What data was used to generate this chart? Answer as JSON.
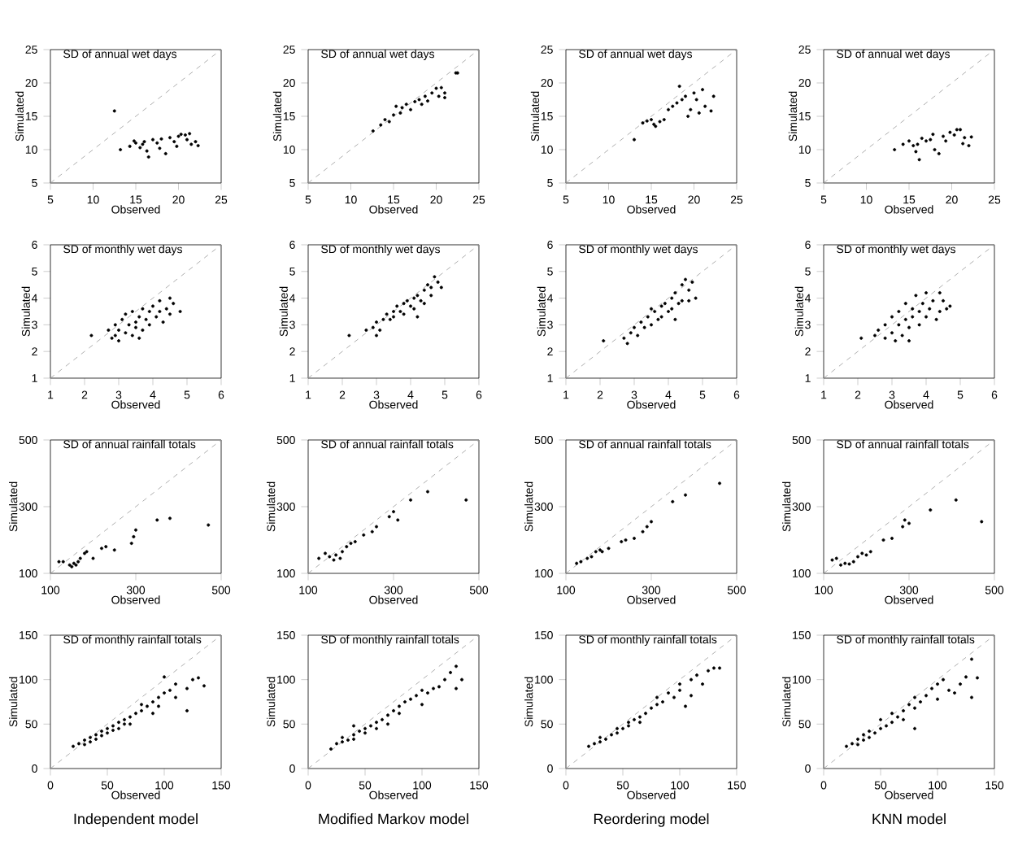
{
  "chart_data": [
    {
      "type": "scatter",
      "title": "SD of annual wet days",
      "xlabel": "Observed",
      "ylabel": "Simulated",
      "xlim": [
        5,
        25
      ],
      "ylim": [
        5,
        25
      ],
      "xticks": [
        5,
        10,
        15,
        20,
        25
      ],
      "yticks": [
        5,
        10,
        15,
        20,
        25
      ],
      "series": [
        {
          "type": "scatter",
          "color": "#000000",
          "marker": "circle",
          "x": [
            12.5,
            13.2,
            14.3,
            15,
            15.5,
            16,
            16.3,
            16.5,
            17,
            17.5,
            18,
            18.5,
            19,
            19.5,
            20,
            20.3,
            20.8,
            21,
            21.3,
            21.5,
            22,
            22.3,
            15.8,
            17.8,
            19.8,
            14.8
          ],
          "values": [
            15.8,
            10.0,
            10.5,
            11,
            10.3,
            11.2,
            9.8,
            8.9,
            11.5,
            11,
            11.6,
            9.4,
            11.8,
            11.2,
            12,
            12.3,
            12.2,
            11.5,
            12.4,
            10.8,
            11.2,
            10.6,
            10.8,
            10.2,
            10.5,
            11.3
          ]
        },
        {
          "type": "line",
          "color": "#999999",
          "line_style": "dashed",
          "marker": "none",
          "x": [
            5,
            25
          ],
          "values": [
            5,
            25
          ]
        }
      ]
    },
    {
      "type": "scatter",
      "title": "SD of annual wet days",
      "xlabel": "Observed",
      "ylabel": "Simulated",
      "xlim": [
        5,
        25
      ],
      "ylim": [
        5,
        25
      ],
      "xticks": [
        5,
        10,
        15,
        20,
        25
      ],
      "yticks": [
        5,
        10,
        15,
        20,
        25
      ],
      "series": [
        {
          "type": "scatter",
          "color": "#000000",
          "marker": "circle",
          "x": [
            12.6,
            13.5,
            14,
            14.5,
            15,
            15.3,
            15.8,
            16,
            16.5,
            17,
            17.5,
            18,
            18.3,
            18.7,
            19,
            19.5,
            20,
            20.3,
            20.6,
            21,
            21,
            22.3,
            22.5
          ],
          "values": [
            12.8,
            13.7,
            14.5,
            14.2,
            15.2,
            16.5,
            15.5,
            16.3,
            16.8,
            16,
            17.2,
            17.5,
            16.8,
            18,
            17.3,
            18.5,
            19.2,
            18,
            19.3,
            17.8,
            18.5,
            21.5,
            21.5
          ]
        },
        {
          "type": "line",
          "color": "#999999",
          "line_style": "dashed",
          "marker": "none",
          "x": [
            5,
            25
          ],
          "values": [
            5,
            25
          ]
        }
      ]
    },
    {
      "type": "scatter",
      "title": "SD of annual wet days",
      "xlabel": "Observed",
      "ylabel": "Simulated",
      "xlim": [
        5,
        25
      ],
      "ylim": [
        5,
        25
      ],
      "xticks": [
        5,
        10,
        15,
        20,
        25
      ],
      "yticks": [
        5,
        10,
        15,
        20,
        25
      ],
      "series": [
        {
          "type": "scatter",
          "color": "#000000",
          "marker": "circle",
          "x": [
            13,
            14,
            14.5,
            15,
            15.3,
            15.5,
            16,
            16.5,
            17,
            17.5,
            18,
            18.3,
            18.6,
            19,
            19.3,
            19.6,
            20,
            20.3,
            20.6,
            21,
            21.3,
            22,
            22.3
          ],
          "values": [
            11.5,
            14,
            14.3,
            14.5,
            13.8,
            13.5,
            14.2,
            14.5,
            16,
            16.5,
            17,
            19.5,
            17.5,
            18,
            15,
            16,
            18.5,
            17.5,
            15.5,
            19,
            16.5,
            15.8,
            18
          ]
        },
        {
          "type": "line",
          "color": "#999999",
          "line_style": "dashed",
          "marker": "none",
          "x": [
            5,
            25
          ],
          "values": [
            5,
            25
          ]
        }
      ]
    },
    {
      "type": "scatter",
      "title": "SD of annual wet days",
      "xlabel": "Observed",
      "ylabel": "Simulated",
      "xlim": [
        5,
        25
      ],
      "ylim": [
        5,
        25
      ],
      "xticks": [
        5,
        10,
        15,
        20,
        25
      ],
      "yticks": [
        5,
        10,
        15,
        20,
        25
      ],
      "series": [
        {
          "type": "scatter",
          "color": "#000000",
          "marker": "circle",
          "x": [
            13.3,
            14.3,
            15,
            15.5,
            15.8,
            16,
            16.2,
            16.5,
            17,
            17.5,
            18,
            18.5,
            19,
            19.3,
            19.8,
            20.3,
            20.6,
            21,
            21.3,
            21.5,
            22,
            22.3,
            17.8
          ],
          "values": [
            10,
            10.8,
            11.3,
            10.6,
            9.7,
            10.8,
            8.5,
            11.7,
            11.3,
            11.5,
            10,
            9.4,
            12,
            11.3,
            12.6,
            12.2,
            13,
            13,
            10.9,
            11.8,
            10.6,
            11.9,
            12.3
          ]
        },
        {
          "type": "line",
          "color": "#999999",
          "line_style": "dashed",
          "marker": "none",
          "x": [
            5,
            25
          ],
          "values": [
            5,
            25
          ]
        }
      ]
    },
    {
      "type": "scatter",
      "title": "SD of monthly wet days",
      "xlabel": "Observed",
      "ylabel": "Simulated",
      "xlim": [
        1,
        6
      ],
      "ylim": [
        1,
        6
      ],
      "xticks": [
        1,
        2,
        3,
        4,
        5,
        6
      ],
      "yticks": [
        1,
        2,
        3,
        4,
        5,
        6
      ],
      "series": [
        {
          "type": "scatter",
          "color": "#000000",
          "marker": "circle",
          "x": [
            2.2,
            2.7,
            2.8,
            2.9,
            3.0,
            3.0,
            3.1,
            3.2,
            3.2,
            3.3,
            3.4,
            3.4,
            3.5,
            3.5,
            3.6,
            3.7,
            3.7,
            3.8,
            3.9,
            3.9,
            4.0,
            4.1,
            4.2,
            4.2,
            4.3,
            4.4,
            4.5,
            4.5,
            4.6,
            4.8,
            2.9,
            3.6
          ],
          "values": [
            2.6,
            2.8,
            2.5,
            3.0,
            2.4,
            2.8,
            3.2,
            2.7,
            3.4,
            3.0,
            2.6,
            3.5,
            3.1,
            2.9,
            3.3,
            3.6,
            2.8,
            3.2,
            3.5,
            3.0,
            3.7,
            3.3,
            3.5,
            3.9,
            3.1,
            3.6,
            4.0,
            3.4,
            3.8,
            3.5,
            2.6,
            2.5
          ]
        },
        {
          "type": "line",
          "color": "#999999",
          "line_style": "dashed",
          "marker": "none",
          "x": [
            1,
            6
          ],
          "values": [
            1,
            6
          ]
        }
      ]
    },
    {
      "type": "scatter",
      "title": "SD of monthly wet days",
      "xlabel": "Observed",
      "ylabel": "Simulated",
      "xlim": [
        1,
        6
      ],
      "ylim": [
        1,
        6
      ],
      "xticks": [
        1,
        2,
        3,
        4,
        5,
        6
      ],
      "yticks": [
        1,
        2,
        3,
        4,
        5,
        6
      ],
      "series": [
        {
          "type": "scatter",
          "color": "#000000",
          "marker": "circle",
          "x": [
            2.2,
            2.7,
            2.9,
            3.0,
            3.1,
            3.2,
            3.3,
            3.4,
            3.5,
            3.5,
            3.6,
            3.7,
            3.8,
            3.8,
            3.9,
            4.0,
            4.1,
            4.1,
            4.2,
            4.3,
            4.4,
            4.4,
            4.5,
            4.6,
            4.6,
            4.7,
            4.8,
            4.9,
            3.0,
            4.2
          ],
          "values": [
            2.6,
            2.8,
            2.9,
            3.1,
            2.8,
            3.2,
            3.4,
            3.2,
            3.5,
            3.3,
            3.7,
            3.5,
            3.8,
            3.4,
            3.9,
            3.7,
            4.0,
            3.6,
            4.1,
            3.9,
            4.3,
            3.8,
            4.5,
            4.4,
            4.1,
            4.8,
            4.6,
            4.4,
            2.6,
            3.3
          ]
        },
        {
          "type": "line",
          "color": "#999999",
          "line_style": "dashed",
          "marker": "none",
          "x": [
            1,
            6
          ],
          "values": [
            1,
            6
          ]
        }
      ]
    },
    {
      "type": "scatter",
      "title": "SD of monthly wet days",
      "xlabel": "Observed",
      "ylabel": "Simulated",
      "xlim": [
        1,
        6
      ],
      "ylim": [
        1,
        6
      ],
      "xticks": [
        1,
        2,
        3,
        4,
        5,
        6
      ],
      "yticks": [
        1,
        2,
        3,
        4,
        5,
        6
      ],
      "series": [
        {
          "type": "scatter",
          "color": "#000000",
          "marker": "circle",
          "x": [
            2.1,
            2.7,
            2.9,
            3.0,
            3.1,
            3.2,
            3.3,
            3.4,
            3.5,
            3.6,
            3.7,
            3.8,
            3.8,
            3.9,
            4.0,
            4.1,
            4.1,
            4.2,
            4.3,
            4.4,
            4.4,
            4.5,
            4.6,
            4.6,
            4.7,
            4.8,
            3.5,
            2.8,
            4.2
          ],
          "values": [
            2.4,
            2.5,
            2.7,
            2.9,
            2.6,
            3.1,
            2.9,
            3.3,
            3.0,
            3.5,
            3.2,
            3.7,
            3.3,
            3.8,
            3.5,
            4.0,
            3.6,
            4.2,
            3.8,
            4.5,
            3.9,
            4.7,
            4.3,
            3.9,
            4.6,
            4.0,
            3.6,
            2.3,
            3.2
          ]
        },
        {
          "type": "line",
          "color": "#999999",
          "line_style": "dashed",
          "marker": "none",
          "x": [
            1,
            6
          ],
          "values": [
            1,
            6
          ]
        }
      ]
    },
    {
      "type": "scatter",
      "title": "SD of monthly wet days",
      "xlabel": "Observed",
      "ylabel": "Simulated",
      "xlim": [
        1,
        6
      ],
      "ylim": [
        1,
        6
      ],
      "xticks": [
        1,
        2,
        3,
        4,
        5,
        6
      ],
      "yticks": [
        1,
        2,
        3,
        4,
        5,
        6
      ],
      "series": [
        {
          "type": "scatter",
          "color": "#000000",
          "marker": "circle",
          "x": [
            2.1,
            2.5,
            2.6,
            2.8,
            2.8,
            3.0,
            3.0,
            3.1,
            3.2,
            3.2,
            3.3,
            3.4,
            3.4,
            3.5,
            3.6,
            3.6,
            3.7,
            3.8,
            3.8,
            3.9,
            4.0,
            4.0,
            4.1,
            4.2,
            4.3,
            4.4,
            4.4,
            4.5,
            4.6,
            4.7,
            3.5
          ],
          "values": [
            2.5,
            2.6,
            2.8,
            3.0,
            2.5,
            3.3,
            2.7,
            2.4,
            3.5,
            3.0,
            2.6,
            3.8,
            3.2,
            2.9,
            3.6,
            3.3,
            4.1,
            3.0,
            3.5,
            3.8,
            3.3,
            4.2,
            3.6,
            3.9,
            3.2,
            4.2,
            3.5,
            3.9,
            3.6,
            3.7,
            2.4
          ]
        },
        {
          "type": "line",
          "color": "#999999",
          "line_style": "dashed",
          "marker": "none",
          "x": [
            1,
            6
          ],
          "values": [
            1,
            6
          ]
        }
      ]
    },
    {
      "type": "scatter",
      "title": "SD of annual rainfall totals",
      "xlabel": "Observed",
      "ylabel": "Simulated",
      "xlim": [
        100,
        500
      ],
      "ylim": [
        100,
        500
      ],
      "xticks": [
        100,
        300,
        500
      ],
      "yticks": [
        100,
        300,
        500
      ],
      "series": [
        {
          "type": "scatter",
          "color": "#000000",
          "marker": "circle",
          "x": [
            120,
            130,
            145,
            150,
            155,
            160,
            165,
            170,
            180,
            185,
            200,
            220,
            230,
            250,
            290,
            295,
            300,
            350,
            380,
            470
          ],
          "values": [
            135,
            135,
            125,
            120,
            130,
            125,
            135,
            145,
            160,
            165,
            145,
            175,
            180,
            170,
            190,
            210,
            230,
            260,
            265,
            245
          ]
        },
        {
          "type": "line",
          "color": "#999999",
          "line_style": "dashed",
          "marker": "none",
          "x": [
            100,
            500
          ],
          "values": [
            100,
            500
          ]
        }
      ]
    },
    {
      "type": "scatter",
      "title": "SD of annual rainfall totals",
      "xlabel": "Observed",
      "ylabel": "Simulated",
      "xlim": [
        100,
        500
      ],
      "ylim": [
        100,
        500
      ],
      "xticks": [
        100,
        300,
        500
      ],
      "yticks": [
        100,
        300,
        500
      ],
      "series": [
        {
          "type": "scatter",
          "color": "#000000",
          "marker": "circle",
          "x": [
            125,
            140,
            150,
            160,
            165,
            175,
            180,
            190,
            200,
            210,
            230,
            250,
            260,
            290,
            300,
            310,
            340,
            380,
            470
          ],
          "values": [
            145,
            160,
            150,
            140,
            155,
            145,
            165,
            180,
            190,
            195,
            215,
            225,
            240,
            270,
            285,
            260,
            320,
            345,
            320
          ]
        },
        {
          "type": "line",
          "color": "#999999",
          "line_style": "dashed",
          "marker": "none",
          "x": [
            100,
            500
          ],
          "values": [
            100,
            500
          ]
        }
      ]
    },
    {
      "type": "scatter",
      "title": "SD of annual rainfall totals",
      "xlabel": "Observed",
      "ylabel": "Simulated",
      "xlim": [
        100,
        500
      ],
      "ylim": [
        100,
        500
      ],
      "xticks": [
        100,
        300,
        500
      ],
      "yticks": [
        100,
        300,
        500
      ],
      "series": [
        {
          "type": "scatter",
          "color": "#000000",
          "marker": "circle",
          "x": [
            125,
            135,
            150,
            160,
            170,
            180,
            185,
            200,
            230,
            240,
            260,
            280,
            290,
            300,
            350,
            380,
            460
          ],
          "values": [
            130,
            135,
            145,
            150,
            165,
            170,
            165,
            175,
            195,
            200,
            205,
            225,
            240,
            255,
            315,
            335,
            370
          ]
        },
        {
          "type": "line",
          "color": "#999999",
          "line_style": "dashed",
          "marker": "none",
          "x": [
            100,
            500
          ],
          "values": [
            100,
            500
          ]
        }
      ]
    },
    {
      "type": "scatter",
      "title": "SD of annual rainfall totals",
      "xlabel": "Observed",
      "ylabel": "Simulated",
      "xlim": [
        100,
        500
      ],
      "ylim": [
        100,
        500
      ],
      "xticks": [
        100,
        300,
        500
      ],
      "yticks": [
        100,
        300,
        500
      ],
      "series": [
        {
          "type": "scatter",
          "color": "#000000",
          "marker": "circle",
          "x": [
            120,
            130,
            140,
            150,
            160,
            170,
            180,
            190,
            200,
            210,
            240,
            260,
            285,
            290,
            300,
            350,
            410,
            470
          ],
          "values": [
            140,
            145,
            125,
            130,
            128,
            135,
            150,
            160,
            155,
            165,
            200,
            205,
            240,
            260,
            250,
            290,
            320,
            255
          ]
        },
        {
          "type": "line",
          "color": "#999999",
          "line_style": "dashed",
          "marker": "none",
          "x": [
            100,
            500
          ],
          "values": [
            100,
            500
          ]
        }
      ]
    },
    {
      "type": "scatter",
      "title": "SD of monthly rainfall totals",
      "xlabel": "Observed",
      "ylabel": "Simulated",
      "xlim": [
        0,
        150
      ],
      "ylim": [
        0,
        150
      ],
      "xticks": [
        0,
        50,
        100,
        150
      ],
      "yticks": [
        0,
        50,
        100,
        150
      ],
      "annotations": [
        "Independent model"
      ],
      "series": [
        {
          "type": "scatter",
          "color": "#000000",
          "marker": "circle",
          "x": [
            20,
            25,
            30,
            30,
            35,
            35,
            40,
            40,
            45,
            45,
            50,
            50,
            55,
            55,
            60,
            60,
            65,
            65,
            70,
            70,
            75,
            80,
            80,
            85,
            90,
            95,
            95,
            100,
            100,
            105,
            110,
            110,
            120,
            120,
            125,
            130,
            135,
            90
          ],
          "values": [
            25,
            28,
            27,
            32,
            30,
            35,
            33,
            38,
            37,
            42,
            40,
            45,
            43,
            48,
            45,
            52,
            50,
            55,
            58,
            50,
            62,
            65,
            72,
            70,
            75,
            80,
            70,
            85,
            103,
            88,
            95,
            80,
            90,
            65,
            100,
            102,
            93,
            62
          ]
        },
        {
          "type": "line",
          "color": "#999999",
          "line_style": "dashed",
          "marker": "none",
          "x": [
            0,
            150
          ],
          "values": [
            0,
            150
          ]
        }
      ]
    },
    {
      "type": "scatter",
      "title": "SD of monthly rainfall totals",
      "xlabel": "Observed",
      "ylabel": "Simulated",
      "xlim": [
        0,
        150
      ],
      "ylim": [
        0,
        150
      ],
      "xticks": [
        0,
        50,
        100,
        150
      ],
      "yticks": [
        0,
        50,
        100,
        150
      ],
      "annotations": [
        "Modified Markov model"
      ],
      "series": [
        {
          "type": "scatter",
          "color": "#000000",
          "marker": "circle",
          "x": [
            20,
            25,
            30,
            30,
            35,
            40,
            40,
            45,
            50,
            50,
            55,
            60,
            60,
            65,
            70,
            70,
            75,
            80,
            80,
            85,
            90,
            95,
            100,
            100,
            105,
            110,
            115,
            120,
            125,
            130,
            135,
            130,
            40
          ],
          "values": [
            22,
            28,
            30,
            35,
            32,
            38,
            33,
            42,
            45,
            40,
            48,
            52,
            45,
            55,
            60,
            50,
            65,
            70,
            62,
            75,
            78,
            82,
            88,
            72,
            85,
            90,
            92,
            100,
            108,
            115,
            100,
            90,
            48
          ]
        },
        {
          "type": "line",
          "color": "#999999",
          "line_style": "dashed",
          "marker": "none",
          "x": [
            0,
            150
          ],
          "values": [
            0,
            150
          ]
        }
      ]
    },
    {
      "type": "scatter",
      "title": "SD of monthly rainfall totals",
      "xlabel": "Observed",
      "ylabel": "Simulated",
      "xlim": [
        0,
        150
      ],
      "ylim": [
        0,
        150
      ],
      "xticks": [
        0,
        50,
        100,
        150
      ],
      "yticks": [
        0,
        50,
        100,
        150
      ],
      "annotations": [
        "Reordering model"
      ],
      "series": [
        {
          "type": "scatter",
          "color": "#000000",
          "marker": "circle",
          "x": [
            20,
            25,
            30,
            30,
            35,
            40,
            45,
            45,
            50,
            55,
            55,
            60,
            65,
            65,
            70,
            75,
            80,
            80,
            85,
            90,
            95,
            100,
            100,
            105,
            110,
            115,
            120,
            125,
            130,
            135,
            110
          ],
          "values": [
            25,
            28,
            30,
            35,
            33,
            38,
            40,
            45,
            45,
            48,
            52,
            55,
            58,
            52,
            62,
            68,
            72,
            80,
            75,
            85,
            80,
            88,
            95,
            70,
            100,
            105,
            95,
            110,
            113,
            113,
            82
          ]
        },
        {
          "type": "line",
          "color": "#999999",
          "line_style": "dashed",
          "marker": "none",
          "x": [
            0,
            150
          ],
          "values": [
            0,
            150
          ]
        }
      ]
    },
    {
      "type": "scatter",
      "title": "SD of monthly rainfall totals",
      "xlabel": "Observed",
      "ylabel": "Simulated",
      "xlim": [
        0,
        150
      ],
      "ylim": [
        0,
        150
      ],
      "xticks": [
        0,
        50,
        100,
        150
      ],
      "yticks": [
        0,
        50,
        100,
        150
      ],
      "annotations": [
        "KNN model"
      ],
      "series": [
        {
          "type": "scatter",
          "color": "#000000",
          "marker": "circle",
          "x": [
            20,
            25,
            30,
            30,
            35,
            35,
            40,
            40,
            45,
            50,
            50,
            55,
            60,
            60,
            65,
            70,
            70,
            75,
            80,
            80,
            85,
            90,
            95,
            100,
            100,
            105,
            110,
            115,
            120,
            125,
            130,
            130,
            135,
            80
          ],
          "values": [
            25,
            28,
            27,
            33,
            32,
            38,
            35,
            42,
            40,
            45,
            55,
            48,
            52,
            62,
            58,
            65,
            55,
            72,
            68,
            80,
            75,
            82,
            90,
            78,
            95,
            100,
            88,
            85,
            95,
            103,
            80,
            123,
            102,
            45
          ]
        },
        {
          "type": "line",
          "color": "#999999",
          "line_style": "dashed",
          "marker": "none",
          "x": [
            0,
            150
          ],
          "values": [
            0,
            150
          ]
        }
      ]
    }
  ]
}
